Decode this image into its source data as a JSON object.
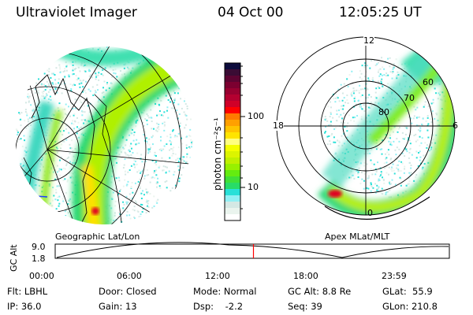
{
  "header": {
    "instrument": "Ultraviolet Imager",
    "date": "04 Oct 00",
    "time": "12:05:25 UT"
  },
  "colorbar": {
    "unit_label": "photon cm⁻²s⁻¹",
    "ticks": [
      "100",
      "10"
    ],
    "scale": "log",
    "colors": [
      "#0c0c3c",
      "#3a0c34",
      "#5c0432",
      "#7c0030",
      "#980030",
      "#b40030",
      "#d00028",
      "#ff0000",
      "#ff7a00",
      "#ffa000",
      "#ffc400",
      "#ffe400",
      "#ffff80",
      "#f4ff00",
      "#dcf400",
      "#c0f000",
      "#98f000",
      "#64ec10",
      "#40e038",
      "#28dc68",
      "#28e0d8",
      "#90f0f4",
      "#d4e8e4",
      "#eaf4ee",
      "#ffffff"
    ]
  },
  "left_panel": {
    "label": "Geographic Lat/Lon"
  },
  "right_panel": {
    "label": "Apex MLat/MLT",
    "mlt_labels": {
      "top": "12",
      "left": "18",
      "right": "6",
      "bottom": "0"
    },
    "lat_labels": [
      "80",
      "70",
      "60"
    ]
  },
  "timeline": {
    "ylabel": "GC Alt",
    "yticks": [
      "9.0",
      "1.8"
    ],
    "xticks": [
      "00:00",
      "06:00",
      "12:00",
      "18:00",
      "23:59"
    ],
    "current_time_fraction": 0.503,
    "marker_color": "#ff0000"
  },
  "info": {
    "row1": [
      "Flt: LBHL",
      "Door: Closed",
      "Mode: Normal",
      "GC Alt: 8.8 Re",
      "GLat:  55.9"
    ],
    "row2": [
      "IP: 36.0",
      "Gain: 13",
      "Dsp:    -2.2",
      "Seq: 39",
      "GLon: 210.8"
    ]
  }
}
